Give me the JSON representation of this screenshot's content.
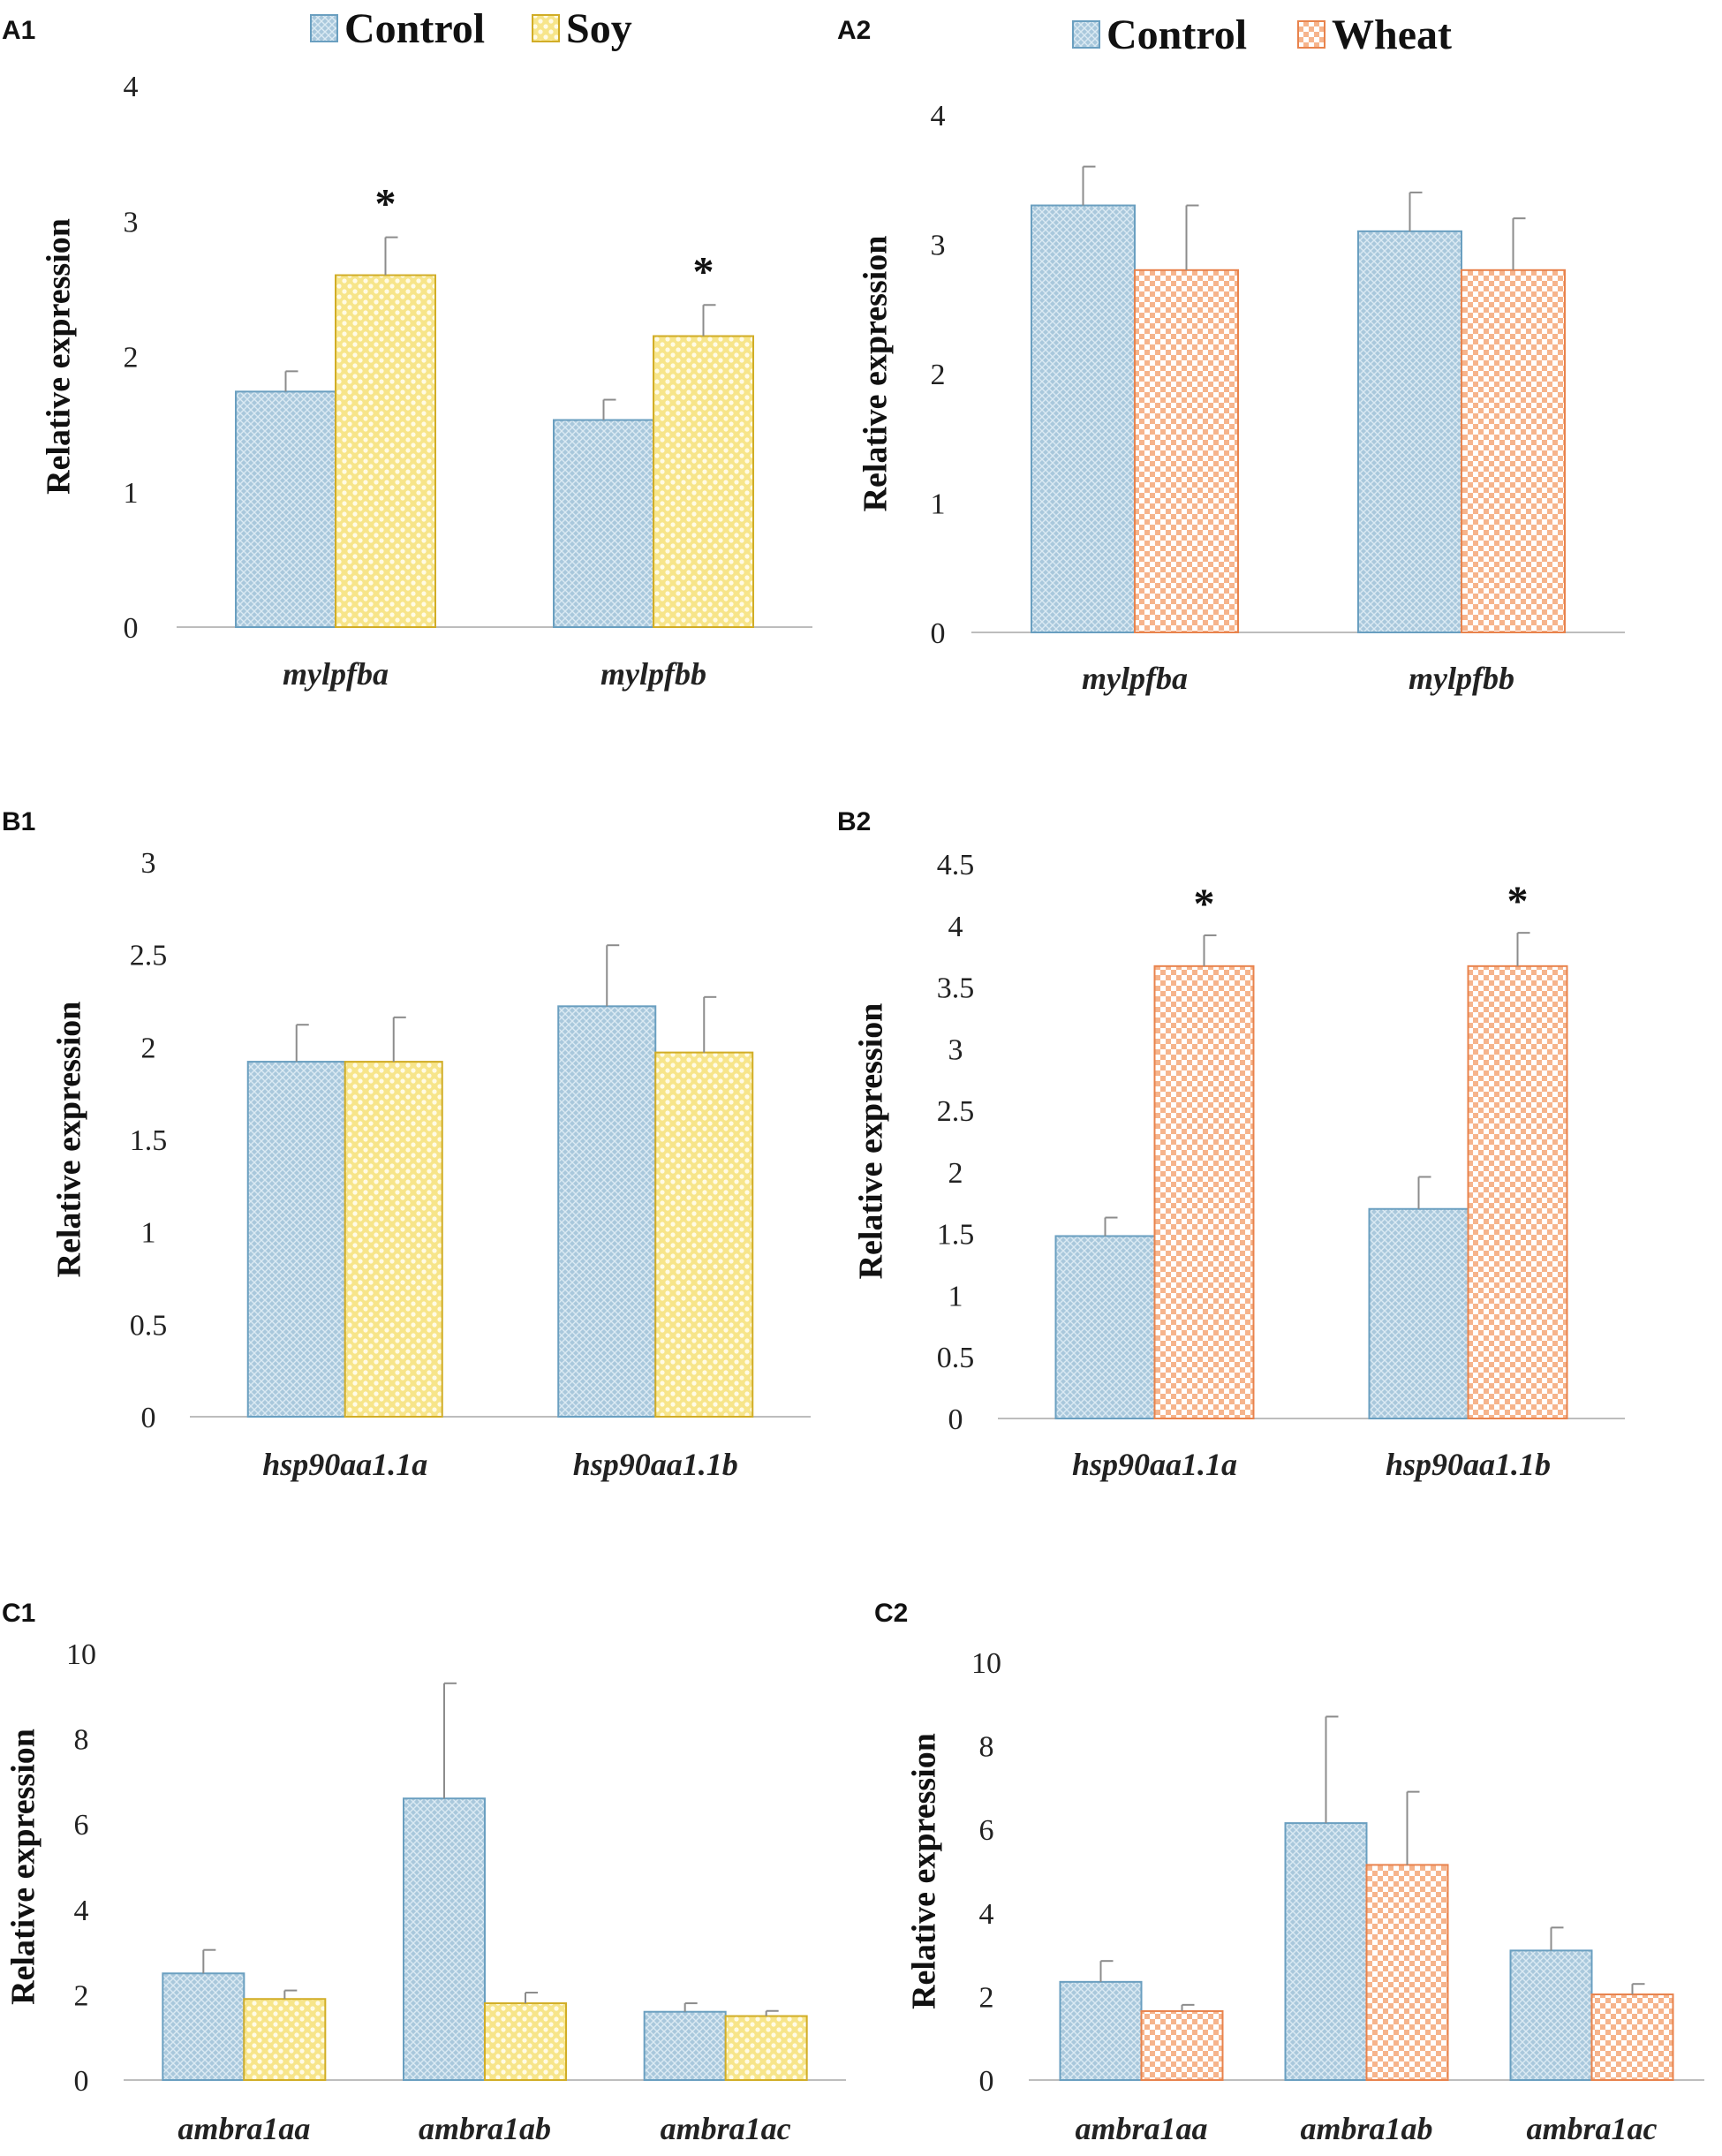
{
  "colors": {
    "control_fill": "#a9c8dc",
    "control_edge": "#6a9fc0",
    "soy_fill": "#f7e58a",
    "soy_edge": "#d1ad27",
    "wheat_fill": "#f9cdb0",
    "wheat_edge": "#e8834d",
    "axis": "#bdbdbd",
    "error": "#8c8c8c"
  },
  "legends": {
    "soy": [
      {
        "name": "Control"
      },
      {
        "name": "Soy"
      }
    ],
    "wheat": [
      {
        "name": "Control"
      },
      {
        "name": "Wheat"
      }
    ]
  },
  "chart_data": [
    {
      "panel": "A1",
      "type": "bar",
      "categories": [
        "mylpfba",
        "mylpfbb"
      ],
      "series": [
        {
          "name": "Control",
          "values": [
            1.74,
            1.53
          ],
          "errors": [
            0.15,
            0.15
          ]
        },
        {
          "name": "Soy",
          "values": [
            2.6,
            2.15
          ],
          "errors": [
            0.28,
            0.23
          ]
        }
      ],
      "significance": [
        "*",
        "*"
      ],
      "ylabel": "Relative expression",
      "ylim": [
        0,
        4
      ],
      "yticks": [
        "0",
        "1",
        "2",
        "3",
        "4"
      ]
    },
    {
      "panel": "A2",
      "type": "bar",
      "categories": [
        "mylpfba",
        "mylpfbb"
      ],
      "series": [
        {
          "name": "Control",
          "values": [
            3.3,
            3.1
          ],
          "errors": [
            0.3,
            0.3
          ]
        },
        {
          "name": "Wheat",
          "values": [
            2.8,
            2.8
          ],
          "errors": [
            0.5,
            0.4
          ]
        }
      ],
      "significance": [
        "",
        ""
      ],
      "ylabel": "Relative expression",
      "ylim": [
        0,
        4
      ],
      "yticks": [
        "0",
        "1",
        "2",
        "3",
        "4"
      ]
    },
    {
      "panel": "B1",
      "type": "bar",
      "categories": [
        "hsp90aa1.1a",
        "hsp90aa1.1b"
      ],
      "series": [
        {
          "name": "Control",
          "values": [
            1.92,
            2.22
          ],
          "errors": [
            0.2,
            0.33
          ]
        },
        {
          "name": "Soy",
          "values": [
            1.92,
            1.97
          ],
          "errors": [
            0.24,
            0.3
          ]
        }
      ],
      "significance": [
        "",
        ""
      ],
      "ylabel": "Relative expression",
      "ylim": [
        0,
        3
      ],
      "yticks": [
        "0",
        "0.5",
        "1",
        "1.5",
        "2",
        "2.5",
        "3"
      ]
    },
    {
      "panel": "B2",
      "type": "bar",
      "categories": [
        "hsp90aa1.1a",
        "hsp90aa1.1b"
      ],
      "series": [
        {
          "name": "Control",
          "values": [
            1.48,
            1.7
          ],
          "errors": [
            0.15,
            0.26
          ]
        },
        {
          "name": "Wheat",
          "values": [
            3.67,
            3.67
          ],
          "errors": [
            0.25,
            0.27
          ]
        }
      ],
      "significance": [
        "*",
        "*"
      ],
      "ylabel": "Relative expression",
      "ylim": [
        0,
        4.5
      ],
      "yticks": [
        "0",
        "0.5",
        "1",
        "1.5",
        "2",
        "2.5",
        "3",
        "3.5",
        "4",
        "4.5"
      ]
    },
    {
      "panel": "C1",
      "type": "bar",
      "categories": [
        "ambra1aa",
        "ambra1ab",
        "ambra1ac"
      ],
      "series": [
        {
          "name": "Control",
          "values": [
            2.5,
            6.6,
            1.6
          ],
          "errors": [
            0.55,
            2.7,
            0.2
          ]
        },
        {
          "name": "Soy",
          "values": [
            1.9,
            1.8,
            1.5
          ],
          "errors": [
            0.2,
            0.25,
            0.12
          ]
        }
      ],
      "significance": [
        "",
        "",
        ""
      ],
      "ylabel": "Relative expression",
      "ylim": [
        0,
        10
      ],
      "yticks": [
        "0",
        "2",
        "4",
        "6",
        "8",
        "10"
      ]
    },
    {
      "panel": "C2",
      "type": "bar",
      "categories": [
        "ambra1aa",
        "ambra1ab",
        "ambra1ac"
      ],
      "series": [
        {
          "name": "Control",
          "values": [
            2.35,
            6.15,
            3.1
          ],
          "errors": [
            0.5,
            2.55,
            0.55
          ]
        },
        {
          "name": "Wheat",
          "values": [
            1.65,
            5.15,
            2.05
          ],
          "errors": [
            0.15,
            1.75,
            0.25
          ]
        }
      ],
      "significance": [
        "",
        "",
        ""
      ],
      "ylabel": "Relative expression",
      "ylim": [
        0,
        10
      ],
      "yticks": [
        "0",
        "2",
        "4",
        "6",
        "8",
        "10"
      ]
    }
  ]
}
